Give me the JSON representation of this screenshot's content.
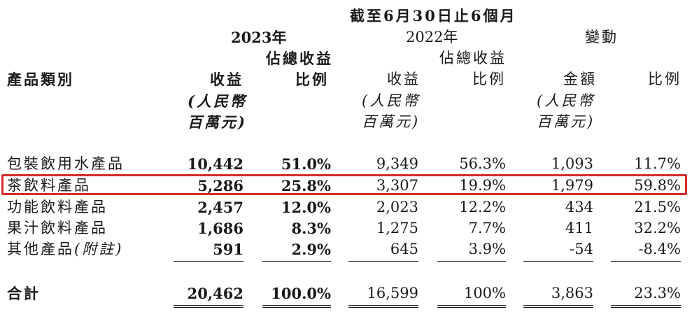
{
  "header": {
    "period": "截至6月30日止6個月",
    "y2023": "2023年",
    "y2022": "2022年",
    "change": "變動",
    "category": "產品類別",
    "pct_top_2023": "佔總收益",
    "pct_bottom_2023": "比例",
    "pct_top_2022": "佔總收益",
    "pct_bottom_2022": "比例",
    "rev_2023": "收益",
    "rev_2022": "收益",
    "amount": "金額",
    "change_pct": "比例",
    "unit_line1": "(人民幣",
    "unit_line2": "百萬元)"
  },
  "rows": [
    {
      "name": "包裝飲用水產品",
      "rev2023": "10,442",
      "pct2023": "51.0%",
      "rev2022": "9,349",
      "pct2022": "56.3%",
      "amount": "1,093",
      "changepct": "11.7%"
    },
    {
      "name": "茶飲料產品",
      "rev2023": "5,286",
      "pct2023": "25.8%",
      "rev2022": "3,307",
      "pct2022": "19.9%",
      "amount": "1,979",
      "changepct": "59.8%"
    },
    {
      "name": "功能飲料產品",
      "rev2023": "2,457",
      "pct2023": "12.0%",
      "rev2022": "2,023",
      "pct2022": "12.2%",
      "amount": "434",
      "changepct": "21.5%"
    },
    {
      "name": "果汁飲料產品",
      "rev2023": "1,686",
      "pct2023": "8.3%",
      "rev2022": "1,275",
      "pct2022": "7.7%",
      "amount": "411",
      "changepct": "32.2%"
    },
    {
      "name": "其他產品",
      "note": "(附註)",
      "rev2023": "591",
      "pct2023": "2.9%",
      "rev2022": "645",
      "pct2022": "3.9%",
      "amount": "-54",
      "changepct": "-8.4%"
    }
  ],
  "total": {
    "name": "合計",
    "rev2023": "20,462",
    "pct2023": "100.0%",
    "rev2022": "16,599",
    "pct2022": "100%",
    "amount": "3,863",
    "changepct": "23.3%"
  },
  "highlight_color": "#d52b2b"
}
